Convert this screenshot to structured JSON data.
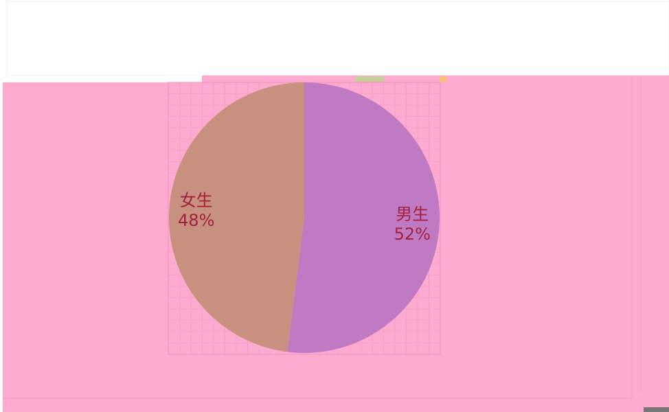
{
  "chart_data": {
    "type": "pie",
    "categories": [
      "男生",
      "女生"
    ],
    "values": [
      52,
      48
    ],
    "value_labels": [
      "52%",
      "48%"
    ],
    "colors": [
      "#c07ac4",
      "#c8907e"
    ]
  }
}
